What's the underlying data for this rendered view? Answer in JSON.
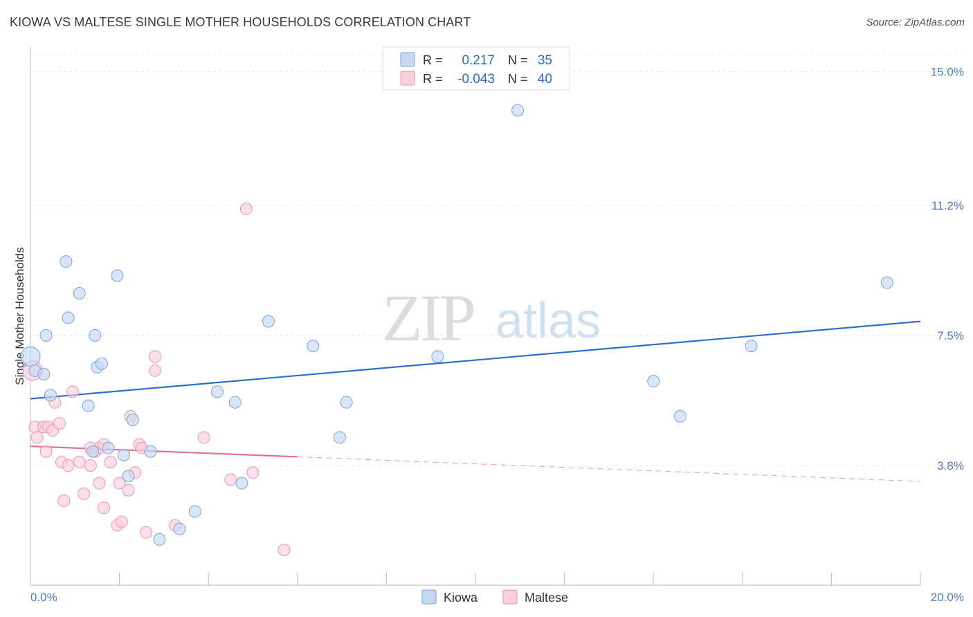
{
  "title": "KIOWA VS MALTESE SINGLE MOTHER HOUSEHOLDS CORRELATION CHART",
  "source": "Source: ZipAtlas.com",
  "watermark": {
    "zip": "ZIP",
    "atlas": "atlas"
  },
  "colors": {
    "kiowa_fill": "#c5d9f2",
    "kiowa_stroke": "#7aa3dc",
    "kiowa_line": "#2e6fcc",
    "maltese_fill": "#f9cfdc",
    "maltese_stroke": "#ec93b1",
    "maltese_line": "#e56f98",
    "tick_blue": "#4a7cc7"
  },
  "legend_stats": [
    {
      "r_label": "R =",
      "r_value": "0.217",
      "n_label": "N =",
      "n_value": "35"
    },
    {
      "r_label": "R =",
      "r_value": "-0.043",
      "n_label": "N =",
      "n_value": "40"
    }
  ],
  "chart_data": {
    "type": "scatter",
    "title": "KIOWA VS MALTESE SINGLE MOTHER HOUSEHOLDS CORRELATION CHART",
    "xlabel": "",
    "ylabel": "Single Mother Households",
    "xlim": [
      0,
      20
    ],
    "ylim": [
      0.4,
      15.7
    ],
    "x_tick_labels": [
      "0.0%",
      "20.0%"
    ],
    "y_ticks": [
      3.8,
      7.5,
      11.2,
      15.0
    ],
    "y_tick_labels": [
      "3.8%",
      "7.5%",
      "11.2%",
      "15.0%"
    ],
    "grid": "horizontal dashed",
    "legend_position": "bottom",
    "series": [
      {
        "name": "Kiowa",
        "points": [
          [
            0.0,
            6.9
          ],
          [
            0.1,
            6.5
          ],
          [
            0.3,
            6.4
          ],
          [
            0.35,
            7.5
          ],
          [
            0.45,
            5.8
          ],
          [
            0.8,
            9.6
          ],
          [
            0.85,
            8.0
          ],
          [
            1.1,
            8.7
          ],
          [
            1.3,
            5.5
          ],
          [
            1.4,
            4.2
          ],
          [
            1.45,
            7.5
          ],
          [
            1.5,
            6.6
          ],
          [
            1.6,
            6.7
          ],
          [
            1.75,
            4.3
          ],
          [
            1.95,
            9.2
          ],
          [
            2.1,
            4.1
          ],
          [
            2.2,
            3.5
          ],
          [
            2.3,
            5.1
          ],
          [
            2.7,
            4.2
          ],
          [
            2.9,
            1.7
          ],
          [
            3.35,
            2.0
          ],
          [
            3.7,
            2.5
          ],
          [
            4.2,
            5.9
          ],
          [
            4.6,
            5.6
          ],
          [
            4.75,
            3.3
          ],
          [
            5.35,
            7.9
          ],
          [
            6.35,
            7.2
          ],
          [
            6.95,
            4.6
          ],
          [
            7.1,
            5.6
          ],
          [
            9.15,
            6.9
          ],
          [
            10.95,
            13.9
          ],
          [
            14.0,
            6.2
          ],
          [
            14.6,
            5.2
          ],
          [
            16.2,
            7.2
          ],
          [
            19.25,
            9.0
          ]
        ],
        "trend": {
          "x": [
            0,
            20
          ],
          "y": [
            5.7,
            7.9
          ]
        }
      },
      {
        "name": "Maltese",
        "points": [
          [
            0.05,
            6.5
          ],
          [
            0.1,
            4.9
          ],
          [
            0.15,
            4.6
          ],
          [
            0.3,
            4.9
          ],
          [
            0.35,
            4.2
          ],
          [
            0.4,
            4.9
          ],
          [
            0.5,
            4.8
          ],
          [
            0.55,
            5.6
          ],
          [
            0.65,
            5.0
          ],
          [
            0.7,
            3.9
          ],
          [
            0.75,
            2.8
          ],
          [
            0.85,
            3.8
          ],
          [
            0.95,
            5.9
          ],
          [
            1.1,
            3.9
          ],
          [
            1.2,
            3.0
          ],
          [
            1.35,
            3.8
          ],
          [
            1.35,
            4.3
          ],
          [
            1.45,
            4.2
          ],
          [
            1.55,
            3.3
          ],
          [
            1.55,
            4.3
          ],
          [
            1.65,
            4.4
          ],
          [
            1.65,
            2.6
          ],
          [
            1.8,
            3.9
          ],
          [
            1.95,
            2.1
          ],
          [
            2.0,
            3.3
          ],
          [
            2.05,
            2.2
          ],
          [
            2.2,
            3.1
          ],
          [
            2.25,
            5.2
          ],
          [
            2.35,
            3.6
          ],
          [
            2.45,
            4.4
          ],
          [
            2.5,
            4.3
          ],
          [
            2.6,
            1.9
          ],
          [
            2.8,
            6.9
          ],
          [
            2.8,
            6.5
          ],
          [
            3.25,
            2.1
          ],
          [
            3.9,
            4.6
          ],
          [
            4.5,
            3.4
          ],
          [
            4.85,
            11.1
          ],
          [
            5.0,
            3.6
          ],
          [
            5.7,
            1.4
          ]
        ],
        "trend": {
          "x": [
            0,
            6
          ],
          "y": [
            4.35,
            4.05
          ]
        },
        "trend_dashed": {
          "x": [
            6,
            20
          ],
          "y": [
            4.05,
            3.35
          ]
        }
      }
    ]
  }
}
